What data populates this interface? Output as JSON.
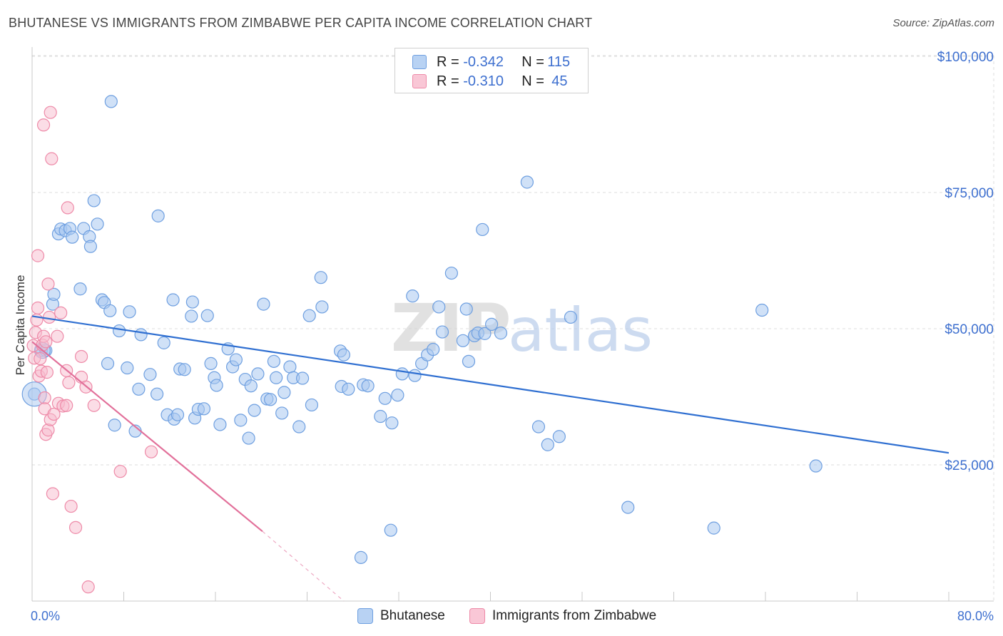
{
  "title": "BHUTANESE VS IMMIGRANTS FROM ZIMBABWE PER CAPITA INCOME CORRELATION CHART",
  "source": "Source: ZipAtlas.com",
  "watermark": {
    "zip": "ZIP",
    "atlas": "atlas"
  },
  "colors": {
    "blue_fill": "#a9c8f0",
    "blue_stroke": "#6e9fe0",
    "blue_line": "#2f6fd1",
    "pink_fill": "#f7bccd",
    "pink_stroke": "#ee8aa8",
    "pink_line": "#e2709a",
    "axis_text": "#3d6fcf",
    "grid": "#dddddd"
  },
  "legend": {
    "rows": [
      {
        "r_label": "R =",
        "r_value": "-0.342",
        "n_label": "N =",
        "n_value": "115"
      },
      {
        "r_label": "R =",
        "r_value": "-0.310",
        "n_label": "N =",
        "n_value": "45"
      }
    ]
  },
  "bottom_legend": {
    "series1": "Bhutanese",
    "series2": "Immigrants from Zimbabwe"
  },
  "chart_data": {
    "type": "scatter",
    "title": "BHUTANESE VS IMMIGRANTS FROM ZIMBABWE PER CAPITA INCOME CORRELATION CHART",
    "xlabel": "",
    "ylabel": "Per Capita Income",
    "xlim": [
      0,
      80
    ],
    "ylim": [
      0,
      105000
    ],
    "x_tick_labels": [
      "0.0%",
      "80.0%"
    ],
    "y_ticks": [
      25000,
      50000,
      75000,
      100000
    ],
    "y_tick_labels": [
      "$25,000",
      "$50,000",
      "$75,000",
      "$100,000"
    ],
    "legend_position": "top-center",
    "series": [
      {
        "name": "Bhutanese",
        "color": "blue",
        "trend": {
          "x": [
            0,
            80
          ],
          "y": [
            52300,
            27200
          ]
        },
        "points": [
          [
            0.2,
            38000
          ],
          [
            0.8,
            46000
          ],
          [
            1.2,
            46000
          ],
          [
            1.8,
            54500
          ],
          [
            1.9,
            56300
          ],
          [
            2.3,
            67400
          ],
          [
            2.5,
            68300
          ],
          [
            2.9,
            68000
          ],
          [
            3.3,
            68400
          ],
          [
            3.5,
            66800
          ],
          [
            4.2,
            57300
          ],
          [
            4.5,
            68400
          ],
          [
            5.0,
            66900
          ],
          [
            5.1,
            65100
          ],
          [
            5.4,
            73500
          ],
          [
            5.7,
            69200
          ],
          [
            6.1,
            55300
          ],
          [
            6.3,
            54800
          ],
          [
            6.6,
            43600
          ],
          [
            6.8,
            53300
          ],
          [
            7.2,
            32300
          ],
          [
            7.6,
            49600
          ],
          [
            8.3,
            42800
          ],
          [
            8.5,
            53100
          ],
          [
            9.0,
            31200
          ],
          [
            9.3,
            38900
          ],
          [
            9.5,
            48900
          ],
          [
            10.3,
            41600
          ],
          [
            10.9,
            38000
          ],
          [
            11.0,
            70700
          ],
          [
            11.5,
            47400
          ],
          [
            11.8,
            34200
          ],
          [
            12.3,
            55300
          ],
          [
            12.4,
            33400
          ],
          [
            12.7,
            34200
          ],
          [
            12.9,
            42600
          ],
          [
            13.3,
            42500
          ],
          [
            13.9,
            52300
          ],
          [
            14.0,
            54900
          ],
          [
            14.2,
            33600
          ],
          [
            14.5,
            35200
          ],
          [
            15.0,
            35300
          ],
          [
            15.3,
            52400
          ],
          [
            15.6,
            43600
          ],
          [
            15.9,
            41000
          ],
          [
            16.1,
            39600
          ],
          [
            16.4,
            32400
          ],
          [
            17.1,
            46300
          ],
          [
            17.5,
            43000
          ],
          [
            17.8,
            44300
          ],
          [
            18.2,
            33200
          ],
          [
            18.6,
            40700
          ],
          [
            18.9,
            29900
          ],
          [
            19.1,
            39500
          ],
          [
            19.4,
            35000
          ],
          [
            19.7,
            41700
          ],
          [
            20.2,
            54500
          ],
          [
            20.5,
            37100
          ],
          [
            20.8,
            37000
          ],
          [
            21.1,
            44000
          ],
          [
            21.3,
            41000
          ],
          [
            21.8,
            34500
          ],
          [
            22.0,
            38300
          ],
          [
            22.5,
            43000
          ],
          [
            22.8,
            41000
          ],
          [
            23.3,
            32000
          ],
          [
            23.6,
            40900
          ],
          [
            24.2,
            52400
          ],
          [
            24.4,
            36000
          ],
          [
            25.2,
            59400
          ],
          [
            25.3,
            54000
          ],
          [
            26.9,
            45900
          ],
          [
            27.0,
            39400
          ],
          [
            27.2,
            45200
          ],
          [
            27.6,
            38900
          ],
          [
            28.9,
            39700
          ],
          [
            29.3,
            39500
          ],
          [
            28.7,
            8000
          ],
          [
            30.4,
            33900
          ],
          [
            30.8,
            37200
          ],
          [
            31.3,
            13000
          ],
          [
            31.4,
            32700
          ],
          [
            31.9,
            37800
          ],
          [
            32.3,
            41700
          ],
          [
            33.2,
            56000
          ],
          [
            33.4,
            41400
          ],
          [
            34.0,
            43600
          ],
          [
            34.5,
            45200
          ],
          [
            35.0,
            46200
          ],
          [
            35.5,
            54000
          ],
          [
            35.8,
            49400
          ],
          [
            36.6,
            60200
          ],
          [
            37.6,
            47800
          ],
          [
            37.9,
            53600
          ],
          [
            38.1,
            44000
          ],
          [
            38.6,
            48700
          ],
          [
            38.9,
            49200
          ],
          [
            39.3,
            68200
          ],
          [
            39.5,
            49100
          ],
          [
            40.1,
            50800
          ],
          [
            40.9,
            49200
          ],
          [
            43.2,
            76900
          ],
          [
            44.2,
            32000
          ],
          [
            45.0,
            28700
          ],
          [
            46.0,
            30200
          ],
          [
            47.0,
            52100
          ],
          [
            52.0,
            17200
          ],
          [
            59.5,
            13400
          ],
          [
            63.7,
            53400
          ],
          [
            68.4,
            24800
          ],
          [
            6.9,
            91700
          ]
        ]
      },
      {
        "name": "Immigrants from Zimbabwe",
        "color": "pink",
        "trend": {
          "x": [
            0,
            20.1
          ],
          "y": [
            47600,
            12800
          ]
        },
        "trend_dashed": {
          "x": [
            20.1,
            27.2
          ],
          "y": [
            12800,
            0
          ]
        },
        "points": [
          [
            0.1,
            46900
          ],
          [
            0.2,
            44600
          ],
          [
            0.3,
            49300
          ],
          [
            0.4,
            51600
          ],
          [
            0.5,
            53800
          ],
          [
            0.5,
            63400
          ],
          [
            0.6,
            41300
          ],
          [
            0.7,
            44500
          ],
          [
            0.8,
            42200
          ],
          [
            0.9,
            47000
          ],
          [
            1.0,
            48600
          ],
          [
            1.1,
            37300
          ],
          [
            1.1,
            35300
          ],
          [
            1.2,
            30600
          ],
          [
            1.2,
            47600
          ],
          [
            1.3,
            42000
          ],
          [
            1.4,
            58200
          ],
          [
            1.4,
            31400
          ],
          [
            1.5,
            52100
          ],
          [
            1.6,
            33300
          ],
          [
            1.7,
            81200
          ],
          [
            1.8,
            19700
          ],
          [
            1.9,
            34300
          ],
          [
            1.0,
            87400
          ],
          [
            1.6,
            89700
          ],
          [
            2.2,
            48600
          ],
          [
            2.3,
            36300
          ],
          [
            2.5,
            52900
          ],
          [
            2.7,
            35800
          ],
          [
            3.0,
            35900
          ],
          [
            3.1,
            72200
          ],
          [
            3.0,
            42300
          ],
          [
            3.2,
            40100
          ],
          [
            3.4,
            17400
          ],
          [
            3.8,
            13500
          ],
          [
            4.3,
            44900
          ],
          [
            4.3,
            41100
          ],
          [
            4.7,
            39300
          ],
          [
            4.9,
            2600
          ],
          [
            5.4,
            35900
          ],
          [
            7.7,
            23800
          ],
          [
            10.4,
            27400
          ]
        ]
      }
    ]
  }
}
